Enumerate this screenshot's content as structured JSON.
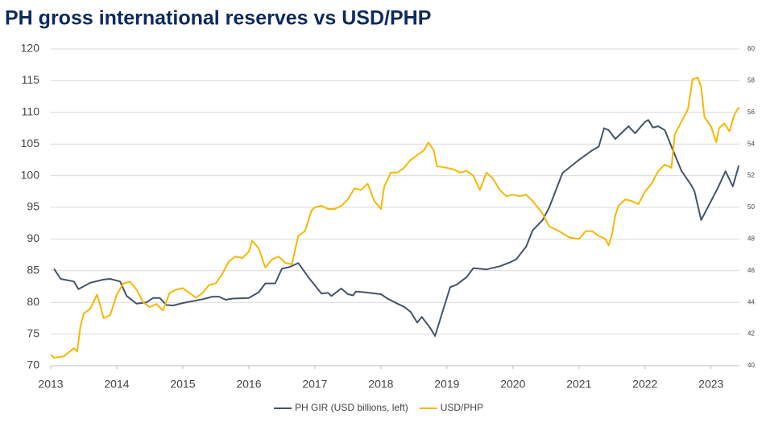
{
  "chart_data": {
    "type": "line",
    "title": "PH gross international reserves vs USD/PHP",
    "xlim": [
      2013,
      2023.43
    ],
    "xticks": [
      2013,
      2014,
      2015,
      2016,
      2017,
      2018,
      2019,
      2020,
      2021,
      2022,
      2023
    ],
    "ylim": [
      70,
      120
    ],
    "yticks": [
      70,
      75,
      80,
      85,
      90,
      95,
      100,
      105,
      110,
      115,
      120
    ],
    "y2lim": [
      40,
      60
    ],
    "y2ticks": [
      40,
      42,
      44,
      46,
      48,
      50,
      52,
      54,
      56,
      58,
      60
    ],
    "grid": true,
    "legend": "bottom",
    "series": [
      {
        "name": "PH GIR (USD billions, left)",
        "color": "#44546a",
        "axis": "y",
        "x": [
          2013.05,
          2013.15,
          2013.35,
          2013.42,
          2013.6,
          2013.8,
          2013.9,
          2014.05,
          2014.15,
          2014.3,
          2014.45,
          2014.55,
          2014.65,
          2014.75,
          2014.85,
          2015.0,
          2015.3,
          2015.45,
          2015.55,
          2015.65,
          2015.75,
          2016.0,
          2016.15,
          2016.25,
          2016.4,
          2016.5,
          2016.62,
          2016.75,
          2016.9,
          2017.1,
          2017.2,
          2017.25,
          2017.4,
          2017.5,
          2017.58,
          2017.62,
          2017.75,
          2018.0,
          2018.1,
          2018.25,
          2018.35,
          2018.45,
          2018.55,
          2018.62,
          2018.75,
          2018.82,
          2019.05,
          2019.15,
          2019.3,
          2019.4,
          2019.5,
          2019.6,
          2019.8,
          2019.95,
          2020.05,
          2020.2,
          2020.3,
          2020.45,
          2020.55,
          2020.75,
          2021.0,
          2021.2,
          2021.3,
          2021.38,
          2021.45,
          2021.55,
          2021.75,
          2021.85,
          2022.0,
          2022.05,
          2022.12,
          2022.2,
          2022.3,
          2022.4,
          2022.55,
          2022.7,
          2022.75,
          2022.85,
          2022.95,
          2023.1,
          2023.22,
          2023.33,
          2023.42
        ],
        "values": [
          85.3,
          83.7,
          83.3,
          82.1,
          83.1,
          83.6,
          83.7,
          83.3,
          81.0,
          79.8,
          80.0,
          80.7,
          80.7,
          79.6,
          79.5,
          79.9,
          80.5,
          80.9,
          80.9,
          80.4,
          80.6,
          80.7,
          81.6,
          83.0,
          83.0,
          85.3,
          85.6,
          86.2,
          84.0,
          81.4,
          81.5,
          81.0,
          82.2,
          81.3,
          81.1,
          81.7,
          81.6,
          81.3,
          80.6,
          79.8,
          79.3,
          78.5,
          76.8,
          77.7,
          75.9,
          74.7,
          82.4,
          82.8,
          84.0,
          85.4,
          85.3,
          85.2,
          85.7,
          86.3,
          86.8,
          88.8,
          91.4,
          93.0,
          95.0,
          100.4,
          102.5,
          104.0,
          104.6,
          107.5,
          107.2,
          105.8,
          107.8,
          106.7,
          108.5,
          108.8,
          107.6,
          107.8,
          107.2,
          104.6,
          100.8,
          98.5,
          97.5,
          93.0,
          95.0,
          98.0,
          100.7,
          98.3,
          101.6
        ]
      },
      {
        "name": "USD/PHP",
        "color": "#f5b800",
        "axis": "y2",
        "x": [
          2013.0,
          2013.05,
          2013.2,
          2013.35,
          2013.4,
          2013.45,
          2013.5,
          2013.6,
          2013.7,
          2013.75,
          2013.8,
          2013.9,
          2014.0,
          2014.1,
          2014.2,
          2014.3,
          2014.4,
          2014.5,
          2014.6,
          2014.7,
          2014.8,
          2014.9,
          2015.0,
          2015.1,
          2015.2,
          2015.3,
          2015.4,
          2015.5,
          2015.6,
          2015.7,
          2015.8,
          2015.9,
          2016.0,
          2016.05,
          2016.15,
          2016.25,
          2016.35,
          2016.45,
          2016.55,
          2016.65,
          2016.75,
          2016.85,
          2016.95,
          2017.0,
          2017.1,
          2017.2,
          2017.3,
          2017.4,
          2017.5,
          2017.6,
          2017.7,
          2017.8,
          2017.9,
          2018.0,
          2018.05,
          2018.15,
          2018.25,
          2018.35,
          2018.45,
          2018.55,
          2018.65,
          2018.72,
          2018.8,
          2018.85,
          2019.0,
          2019.1,
          2019.2,
          2019.3,
          2019.4,
          2019.5,
          2019.6,
          2019.7,
          2019.8,
          2019.9,
          2020.0,
          2020.1,
          2020.2,
          2020.3,
          2020.45,
          2020.55,
          2020.7,
          2020.85,
          2021.0,
          2021.1,
          2021.2,
          2021.3,
          2021.4,
          2021.45,
          2021.5,
          2021.55,
          2021.6,
          2021.7,
          2021.8,
          2021.9,
          2022.0,
          2022.1,
          2022.2,
          2022.3,
          2022.4,
          2022.45,
          2022.55,
          2022.65,
          2022.72,
          2022.8,
          2022.85,
          2022.9,
          2023.0,
          2023.08,
          2023.12,
          2023.2,
          2023.28,
          2023.35,
          2023.4,
          2023.43
        ],
        "values": [
          40.7,
          40.5,
          40.6,
          41.1,
          40.9,
          42.5,
          43.3,
          43.6,
          44.5,
          43.8,
          43.0,
          43.2,
          44.5,
          45.2,
          45.3,
          44.8,
          44.0,
          43.7,
          43.9,
          43.5,
          44.6,
          44.8,
          44.9,
          44.6,
          44.3,
          44.6,
          45.1,
          45.2,
          45.8,
          46.6,
          46.9,
          46.8,
          47.2,
          47.9,
          47.4,
          46.2,
          46.7,
          46.9,
          46.5,
          46.4,
          48.2,
          48.5,
          49.8,
          50.0,
          50.1,
          49.9,
          49.9,
          50.1,
          50.5,
          51.2,
          51.1,
          51.5,
          50.4,
          49.9,
          51.3,
          52.2,
          52.2,
          52.5,
          53.0,
          53.3,
          53.6,
          54.1,
          53.6,
          52.6,
          52.5,
          52.4,
          52.2,
          52.3,
          52.0,
          51.1,
          52.2,
          51.8,
          51.1,
          50.7,
          50.8,
          50.7,
          50.8,
          50.4,
          49.6,
          48.8,
          48.5,
          48.1,
          48.0,
          48.5,
          48.5,
          48.2,
          48.0,
          47.6,
          48.3,
          49.5,
          50.1,
          50.5,
          50.4,
          50.2,
          51.0,
          51.5,
          52.3,
          52.7,
          52.5,
          54.6,
          55.4,
          56.2,
          58.1,
          58.2,
          57.6,
          55.7,
          55.1,
          54.1,
          55.0,
          55.3,
          54.8,
          55.8,
          56.2,
          56.3
        ]
      }
    ]
  }
}
